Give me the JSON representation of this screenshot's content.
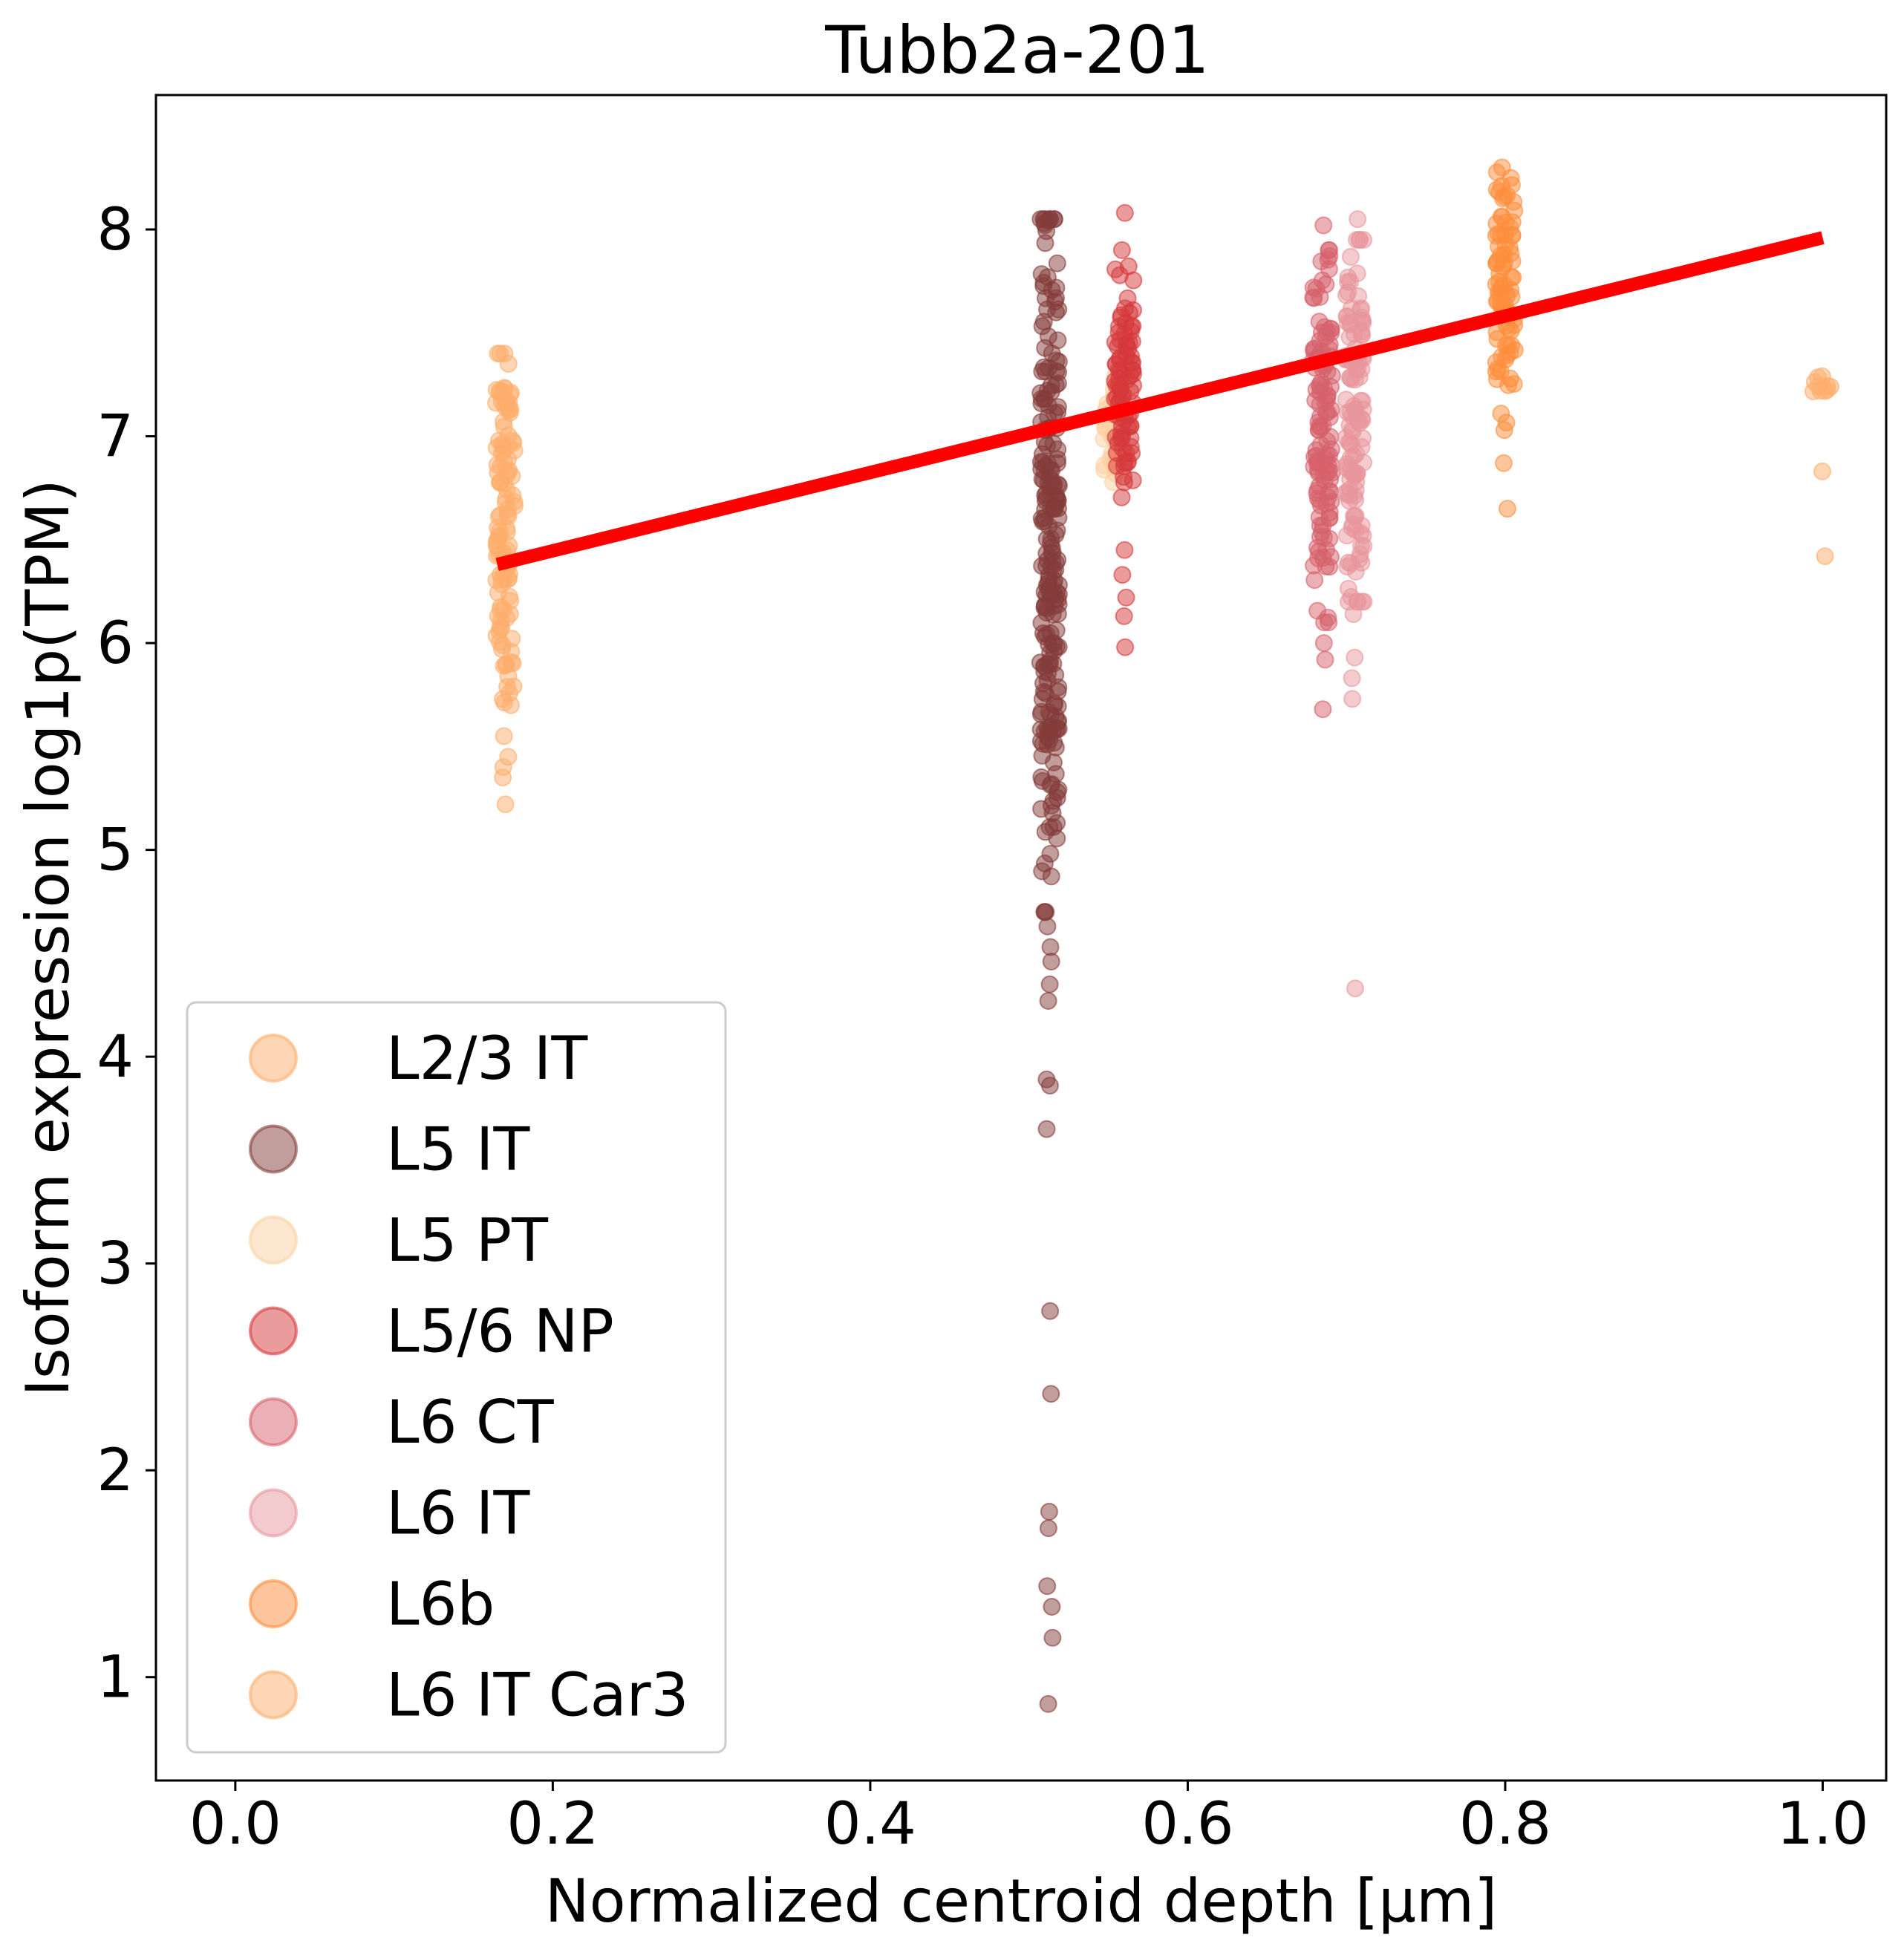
{
  "chart_data": {
    "type": "scatter",
    "title": "Tubb2a-201",
    "xlabel": "Normalized centroid depth [µm]",
    "ylabel": "Isoform expression log1p(TPM)",
    "xlim": [
      -0.05,
      1.04
    ],
    "ylim": [
      0.5,
      8.65
    ],
    "xticks": [
      0.0,
      0.2,
      0.4,
      0.6,
      0.8,
      1.0
    ],
    "xtick_labels": [
      "0.0",
      "0.2",
      "0.4",
      "0.6",
      "0.8",
      "1.0"
    ],
    "yticks": [
      1,
      2,
      3,
      4,
      5,
      6,
      7,
      8
    ],
    "ytick_labels": [
      "1",
      "2",
      "3",
      "4",
      "5",
      "6",
      "7",
      "8"
    ],
    "grid": false,
    "legend_position": "lower-left",
    "series": [
      {
        "name": "L2/3 IT",
        "color": "#fdae6b",
        "x": 0.17,
        "y_min": 5.22,
        "y_max": 7.63,
        "y_core": [
          5.7,
          7.4
        ],
        "outliers": [
          5.22,
          5.35,
          5.4,
          5.45,
          5.55
        ]
      },
      {
        "name": "L5 IT",
        "color": "#843c39",
        "x": 0.513,
        "y_min": 0.87,
        "y_max": 8.12,
        "y_core": [
          4.7,
          8.05
        ],
        "outliers": [
          0.87,
          1.19,
          1.34,
          1.44,
          1.72,
          1.8,
          2.37,
          2.77,
          3.65,
          3.86,
          3.89,
          4.27,
          4.35,
          4.46,
          4.53,
          4.63
        ]
      },
      {
        "name": "L5 PT",
        "color": "#fdd0a2",
        "x": 0.553,
        "y_min": 6.75,
        "y_max": 7.3,
        "y_core": [
          6.75,
          7.3
        ],
        "outliers": []
      },
      {
        "name": "L5/6 NP",
        "color": "#d6383a",
        "x": 0.56,
        "y_min": 5.98,
        "y_max": 8.08,
        "y_core": [
          6.6,
          7.9
        ],
        "outliers": [
          5.98,
          6.13,
          6.22,
          6.33,
          6.45,
          8.08
        ]
      },
      {
        "name": "L6 CT",
        "color": "#d6616b",
        "x": 0.685,
        "y_min": 5.68,
        "y_max": 8.02,
        "y_core": [
          6.1,
          7.9
        ],
        "outliers": [
          5.68,
          5.92,
          6.0,
          8.02
        ]
      },
      {
        "name": "L6 IT",
        "color": "#e7969c",
        "x": 0.705,
        "y_min": 4.33,
        "y_max": 8.05,
        "y_core": [
          6.2,
          7.95
        ],
        "outliers": [
          4.33,
          5.73,
          5.83,
          5.93,
          6.14,
          8.05
        ]
      },
      {
        "name": "L6b",
        "color": "#fd8d3c",
        "x": 0.8,
        "y_min": 6.65,
        "y_max": 8.32,
        "y_core": [
          7.05,
          8.3
        ],
        "outliers": [
          6.65,
          6.87,
          7.03
        ]
      },
      {
        "name": "L6 IT Car3",
        "color": "#fdae6b",
        "x": 1.0,
        "y_min": 6.42,
        "y_max": 7.29,
        "y_core": [
          7.2,
          7.29
        ],
        "outliers": [
          6.42,
          6.83,
          7.22,
          7.29
        ]
      }
    ],
    "trend_line": {
      "color": "#ff0000",
      "x": [
        0.165,
        1.0
      ],
      "y": [
        6.38,
        7.96
      ]
    }
  }
}
